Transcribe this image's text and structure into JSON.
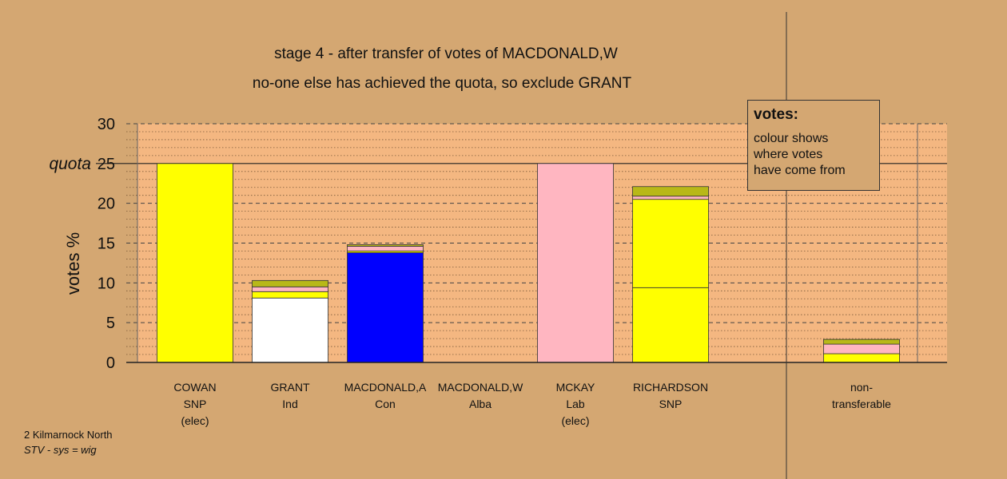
{
  "chart_data": {
    "type": "bar",
    "title": "stage 4 - after transfer of votes of MACDONALD,W",
    "subtitle": "no-one else has achieved the quota, so exclude GRANT",
    "ylabel": "votes %",
    "quota_label": "quota",
    "quota_value": 25,
    "ylim": [
      0,
      30
    ],
    "yticks": [
      0,
      5,
      10,
      15,
      20,
      25,
      30
    ],
    "grid": true,
    "categories": [
      {
        "lines": [
          "COWAN",
          "SNP",
          "(elec)"
        ]
      },
      {
        "lines": [
          "GRANT",
          "Ind"
        ]
      },
      {
        "lines": [
          "MACDONALD,A",
          "Con"
        ]
      },
      {
        "lines": [
          "MACDONALD,W",
          "Alba"
        ]
      },
      {
        "lines": [
          "MCKAY",
          "Lab",
          "(elec)"
        ]
      },
      {
        "lines": [
          "RICHARDSON",
          "SNP"
        ]
      },
      {
        "lines": [
          "non-",
          "transferable"
        ]
      }
    ],
    "stacks": [
      [
        {
          "value": 25.0,
          "color": "#ffff00"
        }
      ],
      [
        {
          "value": 8.1,
          "color": "#ffffff"
        },
        {
          "value": 0.8,
          "color": "#ffff00"
        },
        {
          "value": 0.6,
          "color": "#ffb6c1"
        },
        {
          "value": 0.8,
          "color": "#b8b818"
        }
      ],
      [
        {
          "value": 13.8,
          "color": "#0000ff"
        },
        {
          "value": 0.2,
          "color": "#ffff00"
        },
        {
          "value": 0.6,
          "color": "#ffb6c1"
        },
        {
          "value": 0.2,
          "color": "#b8b818"
        }
      ],
      [],
      [
        {
          "value": 25.0,
          "color": "#ffb6c1"
        }
      ],
      [
        {
          "value": 9.4,
          "color": "#ffff00"
        },
        {
          "value": 11.1,
          "color": "#ffff00"
        },
        {
          "value": 0.4,
          "color": "#ffb6c1"
        },
        {
          "value": 1.2,
          "color": "#b8b818"
        }
      ],
      [
        {
          "value": 1.1,
          "color": "#ffff00"
        },
        {
          "value": 1.2,
          "color": "#ffb6c1"
        },
        {
          "value": 0.6,
          "color": "#b8b818"
        }
      ]
    ],
    "legend": {
      "title": "votes:",
      "lines": [
        "colour shows",
        "where votes",
        "have come from"
      ],
      "placement": "top-right"
    }
  },
  "footer": {
    "line1": "2 Kilmarnock North",
    "line2": "STV - sys = wig"
  },
  "colors": {
    "background": "#d4a772",
    "plot_background": "#f4b781"
  }
}
